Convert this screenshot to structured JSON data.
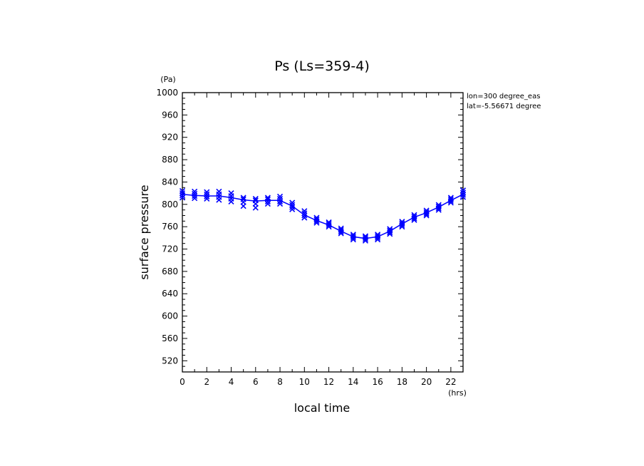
{
  "chart_data": {
    "type": "scatter",
    "title": "Ps (Ls=359-4)",
    "xlabel": "local time",
    "ylabel": "surface pressure",
    "x_unit": "(hrs)",
    "y_unit": "(Pa)",
    "xlim": [
      0,
      23
    ],
    "ylim": [
      500,
      1000
    ],
    "x_ticks": [
      0,
      2,
      4,
      6,
      8,
      10,
      12,
      14,
      16,
      18,
      20,
      22
    ],
    "y_ticks": [
      520,
      560,
      600,
      640,
      680,
      720,
      760,
      800,
      840,
      880,
      920,
      960,
      1000
    ],
    "grid": false,
    "annotations": [
      "lon=300 degree_eas",
      "lat=-5.56671 degree"
    ],
    "color": "#0000ff",
    "mean_line": {
      "x": [
        0,
        1,
        2,
        3,
        4,
        5,
        6,
        7,
        8,
        9,
        10,
        11,
        12,
        13,
        14,
        15,
        16,
        17,
        18,
        19,
        20,
        21,
        22,
        23
      ],
      "y": [
        818,
        816,
        815,
        815,
        812,
        808,
        806,
        807,
        807,
        797,
        781,
        771,
        763,
        752,
        742,
        739,
        742,
        752,
        765,
        777,
        785,
        795,
        807,
        818
      ]
    },
    "samples": {
      "x": [
        0,
        1,
        2,
        3,
        4,
        5,
        6,
        7,
        8,
        9,
        10,
        11,
        12,
        13,
        14,
        15,
        16,
        17,
        18,
        19,
        20,
        21,
        22,
        23
      ],
      "y": [
        [
          812,
          816,
          820,
          824
        ],
        [
          811,
          815,
          819,
          823
        ],
        [
          810,
          814,
          818,
          822
        ],
        [
          808,
          813,
          818,
          823
        ],
        [
          805,
          810,
          815,
          820
        ],
        [
          797,
          804,
          809,
          812
        ],
        [
          794,
          801,
          807,
          810
        ],
        [
          801,
          805,
          809,
          812
        ],
        [
          801,
          805,
          810,
          814
        ],
        [
          791,
          795,
          799,
          803
        ],
        [
          776,
          780,
          784,
          788
        ],
        [
          767,
          770,
          773,
          776
        ],
        [
          760,
          763,
          766,
          768
        ],
        [
          748,
          751,
          754,
          757
        ],
        [
          737,
          740,
          743,
          746
        ],
        [
          735,
          738,
          741,
          743
        ],
        [
          737,
          740,
          743,
          746
        ],
        [
          747,
          750,
          753,
          756
        ],
        [
          760,
          763,
          766,
          769
        ],
        [
          772,
          775,
          778,
          781
        ],
        [
          780,
          783,
          786,
          789
        ],
        [
          790,
          793,
          796,
          799
        ],
        [
          803,
          806,
          809,
          812
        ],
        [
          813,
          817,
          821,
          825
        ]
      ]
    }
  }
}
